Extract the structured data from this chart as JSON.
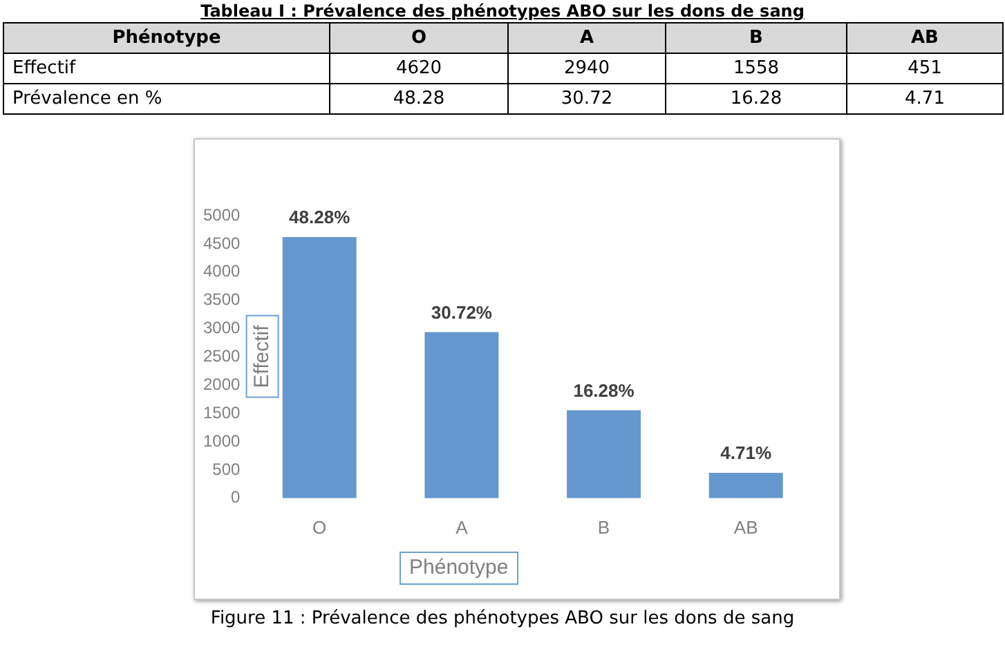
{
  "chart_data": [
    {
      "type": "other",
      "title": "Tableau I : Prévalence des phénotypes ABO sur les dons de sang",
      "xlabel": "Phénotype",
      "categories": [
        "O",
        "A",
        "B",
        "AB"
      ],
      "series": [
        {
          "name": "Effectif",
          "values": [
            4620,
            2940,
            1558,
            451
          ]
        },
        {
          "name": "Prévalence en %",
          "values": [
            48.28,
            30.72,
            16.28,
            4.71
          ]
        }
      ],
      "data_labels": true
    },
    {
      "type": "bar",
      "xlabel": "Phénotype",
      "ylabel": "Effectif",
      "categories": [
        "O",
        "A",
        "B",
        "AB"
      ],
      "values": [
        4620,
        2940,
        1558,
        451
      ],
      "color": "#6598cf",
      "ylim": [
        0,
        5000
      ],
      "yticks": [
        0,
        500,
        1000,
        1500,
        2000,
        2500,
        3000,
        3500,
        4000,
        4500,
        5000
      ],
      "grid": false,
      "legend": false,
      "annotations": [
        {
          "text": "48.28%",
          "x": "O",
          "y": 4620
        },
        {
          "text": "30.72%",
          "x": "A",
          "y": 2940
        },
        {
          "text": "16.28%",
          "x": "B",
          "y": 1558
        },
        {
          "text": "4.71%",
          "x": "AB",
          "y": 451
        },
        "Figure 11 : Prévalence des phénotypes ABO sur les dons de sang"
      ]
    }
  ]
}
